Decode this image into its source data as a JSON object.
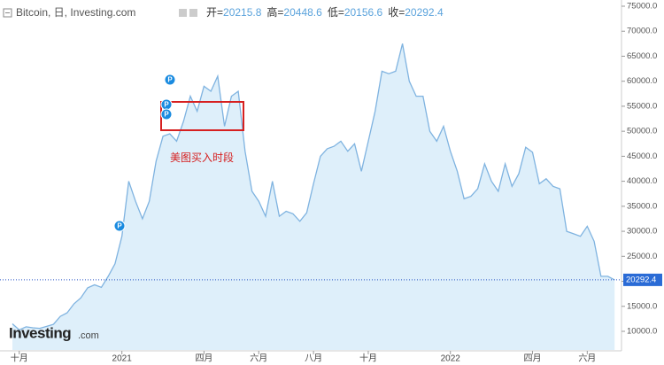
{
  "chart_data": {
    "type": "area",
    "title": "Bitcoin, 日, Investing.com",
    "ohlc": [
      {
        "label": "开=",
        "value": 20215.8
      },
      {
        "label": "高=",
        "value": 20448.6
      },
      {
        "label": "低=",
        "value": 20156.6
      },
      {
        "label": "收=",
        "value": 20292.4
      }
    ],
    "categories": [
      null,
      "十月",
      null,
      null,
      null,
      null,
      null,
      null,
      null,
      null,
      null,
      null,
      null,
      null,
      null,
      null,
      "2021",
      null,
      null,
      null,
      null,
      null,
      null,
      null,
      null,
      null,
      null,
      null,
      "四月",
      null,
      null,
      null,
      null,
      null,
      null,
      null,
      "六月",
      null,
      null,
      null,
      null,
      null,
      null,
      null,
      "八月",
      null,
      null,
      null,
      null,
      null,
      null,
      null,
      "十月",
      null,
      null,
      null,
      null,
      null,
      null,
      null,
      null,
      null,
      null,
      null,
      "2022",
      null,
      null,
      null,
      null,
      null,
      null,
      null,
      null,
      null,
      null,
      null,
      "四月",
      null,
      null,
      null,
      null,
      null,
      null,
      null,
      "六月",
      null,
      null,
      null,
      null
    ],
    "values": [
      11500,
      10300,
      10900,
      10700,
      10600,
      11000,
      11400,
      13000,
      13700,
      15500,
      16700,
      18700,
      19300,
      18800,
      21000,
      23500,
      29000,
      40000,
      36000,
      32500,
      36000,
      44000,
      49000,
      49500,
      48000,
      52000,
      57000,
      54000,
      59000,
      58000,
      61000,
      51000,
      57000,
      58000,
      46000,
      38000,
      36000,
      33000,
      40000,
      33000,
      34000,
      33500,
      32000,
      33700,
      39500,
      45000,
      46500,
      47000,
      48000,
      46000,
      47500,
      42000,
      48000,
      54000,
      62000,
      61500,
      62000,
      67500,
      60000,
      57000,
      57000,
      50000,
      48000,
      51000,
      46000,
      42000,
      36500,
      37000,
      38500,
      43500,
      40000,
      38000,
      43500,
      39000,
      41500,
      46800,
      45800,
      39500,
      40500,
      39000,
      38500,
      30000,
      29500,
      29000,
      31000,
      28000,
      21000,
      21000,
      20292.4
    ],
    "color": "#7fb3e0",
    "fill": "#deeffa",
    "ylim": [
      6280,
      76240
    ],
    "yticks": [
      {
        "value": 10000,
        "label": "10000.0"
      },
      {
        "value": 15000,
        "label": "15000.0"
      },
      {
        "value": 20000,
        "label": "20000.0"
      },
      {
        "value": 25000,
        "label": "25000.0"
      },
      {
        "value": 30000,
        "label": "30000.0"
      },
      {
        "value": 35000,
        "label": "35000.0"
      },
      {
        "value": 40000,
        "label": "40000.0"
      },
      {
        "value": 45000,
        "label": "45000.0"
      },
      {
        "value": 50000,
        "label": "50000.0"
      },
      {
        "value": 55000,
        "label": "55000.0"
      },
      {
        "value": 60000,
        "label": "60000.0"
      },
      {
        "value": 65000,
        "label": "65000.0"
      },
      {
        "value": 70000,
        "label": "70000.0"
      },
      {
        "value": 75000,
        "label": "75000.0"
      }
    ],
    "annotation": "美图买入时段",
    "event_markers": [
      "P",
      "P",
      "P",
      "P"
    ],
    "logo": {
      "name": "Investing",
      "suffix": ".com"
    }
  }
}
